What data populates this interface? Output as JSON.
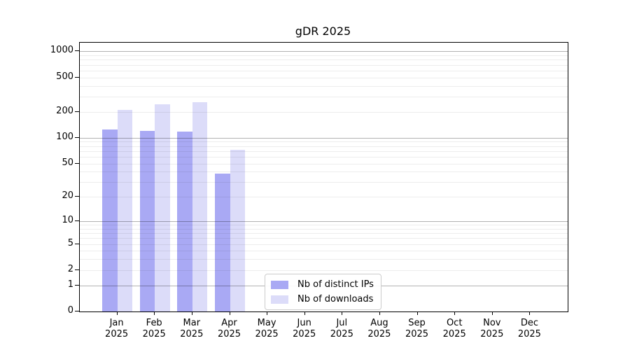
{
  "chart_data": {
    "type": "bar",
    "title": "gDR 2025",
    "categories": [
      "Jan",
      "Feb",
      "Mar",
      "Apr",
      "May",
      "Jun",
      "Jul",
      "Aug",
      "Sep",
      "Oct",
      "Nov",
      "Dec"
    ],
    "category_year": "2025",
    "series": [
      {
        "name": "Nb of distinct IPs",
        "color": "#a9a9f4",
        "values": [
          125,
          120,
          118,
          38,
          0,
          0,
          0,
          0,
          0,
          0,
          0,
          0
        ]
      },
      {
        "name": "Nb of downloads",
        "color": "#dcdcf9",
        "values": [
          212,
          245,
          260,
          73,
          0,
          0,
          0,
          0,
          0,
          0,
          0,
          0
        ]
      }
    ],
    "y_ticks": [
      0,
      1,
      2,
      5,
      10,
      20,
      50,
      100,
      200,
      500,
      1000
    ],
    "y_scale": "log10(1+v)",
    "ylim": [
      0,
      1258
    ],
    "grid": {
      "horizontal_major": [
        1,
        10,
        100,
        1000
      ],
      "horizontal_minor": "2-9 per decade"
    },
    "legend": {
      "position": "inside lower-center",
      "entries": [
        "Nb of distinct IPs",
        "Nb of downloads"
      ]
    }
  }
}
